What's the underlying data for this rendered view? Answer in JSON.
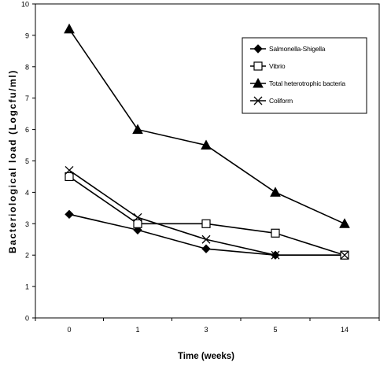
{
  "chart_data": {
    "type": "line",
    "title": "",
    "xlabel": "Time (weeks)",
    "ylabel": "Bacteriological load  (Logcfu/ml)",
    "categories": [
      "0",
      "1",
      "3",
      "5",
      "14"
    ],
    "ylim": [
      0,
      10
    ],
    "yticks": [
      0,
      1,
      2,
      3,
      4,
      5,
      6,
      7,
      8,
      9,
      10
    ],
    "grid": false,
    "legend_position": "top-right",
    "series": [
      {
        "name": "Salmonella-Shigella",
        "marker": "diamond",
        "values": [
          3.3,
          2.8,
          2.2,
          2.0,
          2.0
        ]
      },
      {
        "name": "Vibrio",
        "marker": "open-square",
        "values": [
          4.5,
          3.0,
          3.0,
          2.7,
          2.0
        ]
      },
      {
        "name": "Total heterotrophic bacteria",
        "marker": "triangle",
        "values": [
          9.2,
          6.0,
          5.5,
          4.0,
          3.0
        ]
      },
      {
        "name": "Coliform",
        "marker": "x",
        "values": [
          4.7,
          3.2,
          2.5,
          2.0,
          2.0
        ]
      }
    ],
    "colors": {
      "line": "#000000",
      "background": "#ffffff"
    }
  }
}
